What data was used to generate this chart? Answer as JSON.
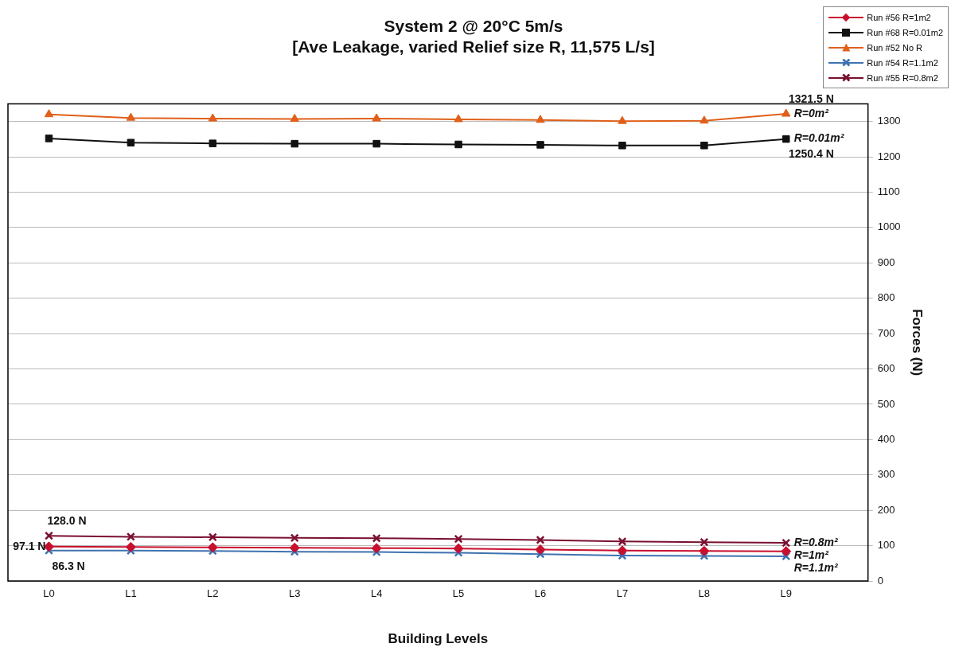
{
  "chart_data": {
    "type": "line",
    "title": "System 2 @ 20°C 5m/s",
    "subtitle": "[Ave Leakage, varied Relief size R, 11,575 L/s]",
    "xlabel": "Building Levels",
    "ylabel": "Forces (N)",
    "categories": [
      "L0",
      "L1",
      "L2",
      "L3",
      "L4",
      "L5",
      "L6",
      "L7",
      "L8",
      "L9"
    ],
    "series": [
      {
        "name": "Run #56 R=1m2",
        "color": "#c8102e",
        "marker": "diamond",
        "values": [
          97.1,
          96,
          95,
          94,
          93,
          92,
          89,
          86,
          85,
          84
        ],
        "value_labels": [
          "97.1 N",
          null,
          null,
          null,
          null,
          null,
          null,
          null,
          null,
          null
        ]
      },
      {
        "name": "Run #68 R=0.01m2",
        "color": "#111111",
        "marker": "square",
        "values": [
          1252,
          1240,
          1238,
          1237,
          1237,
          1235,
          1234,
          1232,
          1232,
          1250.4
        ],
        "value_labels": [
          null,
          null,
          null,
          null,
          null,
          null,
          null,
          null,
          null,
          "1250.4 N"
        ]
      },
      {
        "name": "Run #52 No R",
        "color": "#e0601a",
        "marker": "triangle",
        "values": [
          1320,
          1310,
          1308,
          1307,
          1308,
          1306,
          1304,
          1301,
          1302,
          1321.5
        ],
        "value_labels": [
          null,
          null,
          null,
          null,
          null,
          null,
          null,
          null,
          null,
          "1321.5 N"
        ]
      },
      {
        "name": "Run #54 R=1.1m2",
        "color": "#3f72b0",
        "marker": "cross",
        "values": [
          86.3,
          86,
          85,
          83,
          82,
          80,
          76,
          72,
          71,
          70
        ],
        "value_labels": [
          "86.3 N",
          null,
          null,
          null,
          null,
          null,
          null,
          null,
          null,
          null
        ]
      },
      {
        "name": "Run #55 R=0.8m2",
        "color": "#7a1030",
        "marker": "cross",
        "values": [
          128.0,
          125,
          124,
          122,
          121,
          119,
          116,
          112,
          110,
          108
        ],
        "value_labels": [
          "128.0 N",
          null,
          null,
          null,
          null,
          null,
          null,
          null,
          null,
          null
        ]
      }
    ],
    "annotations": [
      {
        "text": "R=0m²",
        "x": "L9",
        "y": 1321.5
      },
      {
        "text": "R=0.01m²",
        "x": "L9",
        "y": 1250.4
      },
      {
        "text": "R=0.8m²",
        "x": "L9",
        "y": 108
      },
      {
        "text": "R=1m²",
        "x": "L9",
        "y": 84
      },
      {
        "text": "R=1.1m²",
        "x": "L9",
        "y": 70
      }
    ],
    "ylim": [
      0,
      1350
    ],
    "yticks": [
      0,
      100,
      200,
      300,
      400,
      500,
      600,
      700,
      800,
      900,
      1000,
      1100,
      1200,
      1300
    ],
    "grid": "y",
    "legend": "top right",
    "line_style": "solid"
  }
}
